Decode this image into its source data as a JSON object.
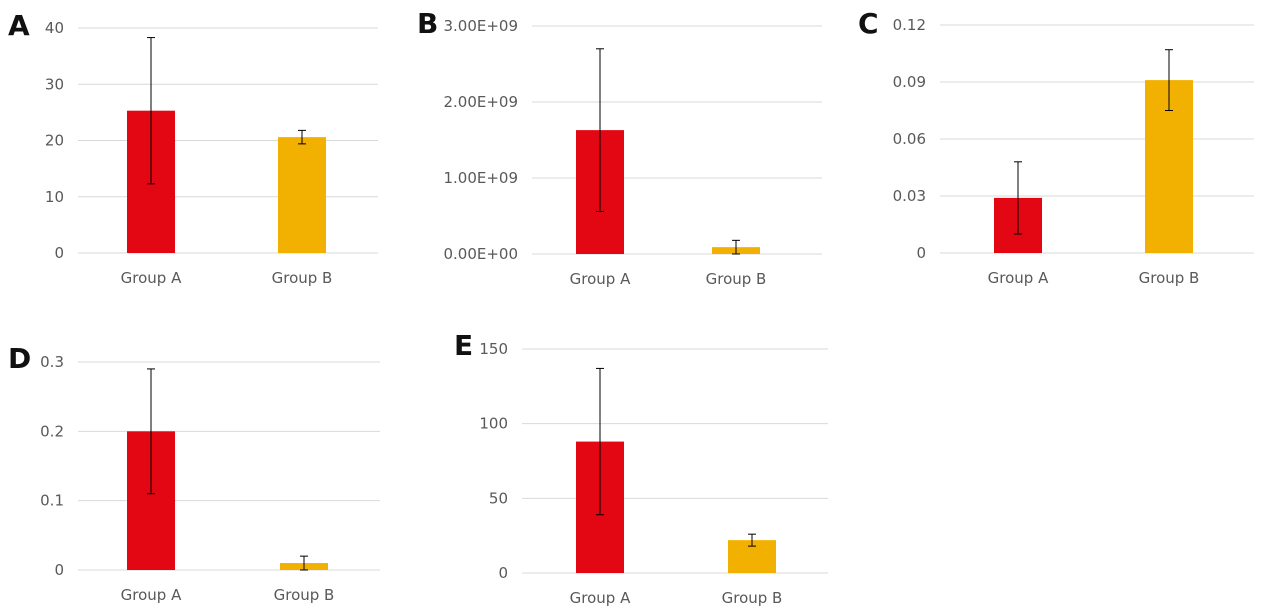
{
  "colors": {
    "group_a": "#e30613",
    "group_b": "#f2b000",
    "grid": "#d9d9d9",
    "axis_text": "#595959",
    "error_bar": "#000000"
  },
  "chart_data": [
    {
      "panel": "A",
      "type": "bar",
      "categories": [
        "Group A",
        "Group B"
      ],
      "values": [
        25.3,
        20.6
      ],
      "errors": [
        13,
        1.2
      ],
      "ylim": [
        0,
        40
      ],
      "yticks": [
        0,
        10,
        20,
        30,
        40
      ],
      "ytick_labels": [
        "0",
        "10",
        "20",
        "30",
        "40"
      ],
      "title": "",
      "xlabel": "",
      "ylabel": "",
      "grid": true
    },
    {
      "panel": "B",
      "type": "bar",
      "categories": [
        "Group A",
        "Group B"
      ],
      "values": [
        1630000000,
        90000000
      ],
      "errors": [
        1070000000,
        90000000
      ],
      "ylim": [
        0,
        3000000000
      ],
      "yticks": [
        0,
        1000000000,
        2000000000,
        3000000000
      ],
      "ytick_labels": [
        "0.00E+00",
        "1.00E+09",
        "2.00E+09",
        "3.00E+09"
      ],
      "title": "",
      "xlabel": "",
      "ylabel": "",
      "grid": true
    },
    {
      "panel": "C",
      "type": "bar",
      "categories": [
        "Group A",
        "Group B"
      ],
      "values": [
        0.029,
        0.091
      ],
      "errors": [
        0.019,
        0.016
      ],
      "ylim": [
        0,
        0.12
      ],
      "yticks": [
        0,
        0.03,
        0.06,
        0.09,
        0.12
      ],
      "ytick_labels": [
        "0",
        "0.03",
        "0.06",
        "0.09",
        "0.12"
      ],
      "title": "",
      "xlabel": "",
      "ylabel": "",
      "grid": true
    },
    {
      "panel": "D",
      "type": "bar",
      "categories": [
        "Group A",
        "Group B"
      ],
      "values": [
        0.2,
        0.01
      ],
      "errors": [
        0.09,
        0.01
      ],
      "ylim": [
        0,
        0.3
      ],
      "yticks": [
        0,
        0.1,
        0.2,
        0.3
      ],
      "ytick_labels": [
        "0",
        "0.1",
        "0.2",
        "0.3"
      ],
      "title": "",
      "xlabel": "",
      "ylabel": "",
      "grid": true
    },
    {
      "panel": "E",
      "type": "bar",
      "categories": [
        "Group A",
        "Group B"
      ],
      "values": [
        88,
        22
      ],
      "errors": [
        49,
        4
      ],
      "ylim": [
        0,
        150
      ],
      "yticks": [
        0,
        50,
        100,
        150
      ],
      "ytick_labels": [
        "0",
        "50",
        "100",
        "150"
      ],
      "title": "",
      "xlabel": "",
      "ylabel": "",
      "grid": true
    }
  ]
}
